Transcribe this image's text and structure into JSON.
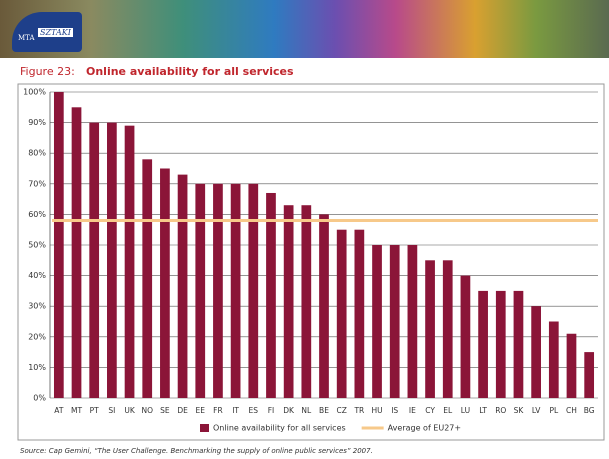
{
  "header": {
    "logo_left": "MTA",
    "logo_right": "SZTAKI"
  },
  "chart_data": {
    "type": "bar",
    "figure_label": "Figure 23:",
    "title": "Online availability for all services",
    "categories": [
      "AT",
      "MT",
      "PT",
      "SI",
      "UK",
      "NO",
      "SE",
      "DE",
      "EE",
      "FR",
      "IT",
      "ES",
      "FI",
      "DK",
      "NL",
      "BE",
      "CZ",
      "TR",
      "HU",
      "IS",
      "IE",
      "CY",
      "EL",
      "LU",
      "LT",
      "RO",
      "SK",
      "LV",
      "PL",
      "CH",
      "BG"
    ],
    "series": [
      {
        "name": "Online availability for all services",
        "color": "#8b1538",
        "values": [
          100,
          95,
          90,
          90,
          89,
          78,
          75,
          73,
          70,
          70,
          70,
          70,
          67,
          63,
          63,
          60,
          55,
          55,
          50,
          50,
          50,
          45,
          45,
          40,
          35,
          35,
          35,
          30,
          25,
          21,
          15
        ]
      }
    ],
    "reference_lines": [
      {
        "name": "Average of EU27+",
        "value": 58,
        "color": "#f7c98a"
      }
    ],
    "ylim": [
      0,
      100
    ],
    "yticks": [
      {
        "value": 0,
        "label": "0%"
      },
      {
        "value": 10,
        "label": "10%"
      },
      {
        "value": 20,
        "label": "20%"
      },
      {
        "value": 30,
        "label": "30%"
      },
      {
        "value": 40,
        "label": "40%"
      },
      {
        "value": 50,
        "label": "50%"
      },
      {
        "value": 60,
        "label": "60%"
      },
      {
        "value": 70,
        "label": "70%"
      },
      {
        "value": 80,
        "label": "80%"
      },
      {
        "value": 90,
        "label": "90%"
      },
      {
        "value": 100,
        "label": "100%"
      }
    ],
    "grid": true,
    "source": "Source: Cap Gemini, “The User Challenge. Benchmarking the supply of online public services” 2007."
  }
}
